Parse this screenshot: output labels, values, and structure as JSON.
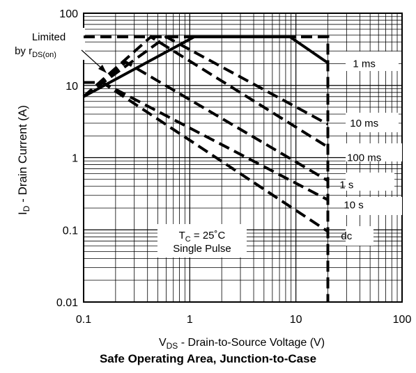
{
  "chart_data": {
    "type": "line",
    "caption": "Safe Operating Area, Junction-to-Case",
    "x_axis": {
      "label_main": "V",
      "label_sub": "DS",
      "label_rest": "  -   Drain-to-Source Voltage (V)",
      "scale": "log",
      "range": [
        0.1,
        100
      ],
      "ticks": [
        {
          "v": 0.1,
          "label": "0.1"
        },
        {
          "v": 1,
          "label": "1"
        },
        {
          "v": 10,
          "label": "10"
        },
        {
          "v": 100,
          "label": "100"
        }
      ]
    },
    "y_axis": {
      "label_main": "I",
      "label_sub": "D",
      "label_rest": " - Drain Current (A)",
      "scale": "log",
      "range": [
        0.01,
        100
      ],
      "ticks": [
        {
          "v": 0.01,
          "label": "0.01"
        },
        {
          "v": 0.1,
          "label": "0.1"
        },
        {
          "v": 1,
          "label": "1"
        },
        {
          "v": 10,
          "label": "10"
        },
        {
          "v": 100,
          "label": "100"
        }
      ]
    },
    "grid": true,
    "limit_annotation": {
      "line1": "Limited",
      "line2_main": "by r",
      "line2_sub": "DS(on)"
    },
    "conditions": {
      "tc_main": "T",
      "tc_sub": "C",
      "tc_rest": " = 25˚C",
      "pulse": "Single Pulse"
    },
    "series": [
      {
        "name": "1 ms",
        "style": "solid",
        "points": [
          [
            0.1,
            7.0
          ],
          [
            1.1,
            47.0
          ],
          [
            8.8,
            47.0
          ],
          [
            20,
            20.5
          ]
        ]
      },
      {
        "name": "10 ms",
        "style": "dashed",
        "points": [
          [
            0.1,
            7.0
          ],
          [
            0.6,
            47.0
          ],
          [
            20,
            2.9
          ]
        ]
      },
      {
        "name": "100 ms",
        "style": "dashed",
        "points": [
          [
            0.1,
            7.0
          ],
          [
            0.43,
            47.0
          ],
          [
            20,
            1.4
          ]
        ]
      },
      {
        "name": "1 s",
        "style": "dashed",
        "points": [
          [
            0.1,
            7.0
          ],
          [
            0.25,
            21.0
          ],
          [
            20,
            0.48
          ]
        ]
      },
      {
        "name": "10 s",
        "style": "dashed",
        "points": [
          [
            0.1,
            11.0
          ],
          [
            0.15,
            11.0
          ],
          [
            20,
            0.26
          ]
        ]
      },
      {
        "name": "dc",
        "style": "dashed",
        "points": [
          [
            0.1,
            11.0
          ],
          [
            0.15,
            11.0
          ],
          [
            20,
            0.095
          ]
        ]
      },
      {
        "name": "",
        "style": "dashed",
        "points": [
          [
            0.1,
            47.0
          ],
          [
            20,
            47.0
          ],
          [
            20,
            0.01
          ]
        ]
      }
    ],
    "series_labels": [
      {
        "text": "1 ms",
        "x": 44,
        "y": 20
      },
      {
        "text": "10 ms",
        "x": 44,
        "y": 3.0
      },
      {
        "text": "100 ms",
        "x": 44,
        "y": 1.0
      },
      {
        "text": "1 s",
        "x": 30,
        "y": 0.42
      },
      {
        "text": "10 s",
        "x": 35,
        "y": 0.22
      },
      {
        "text": "dc",
        "x": 30,
        "y": 0.082
      }
    ]
  }
}
